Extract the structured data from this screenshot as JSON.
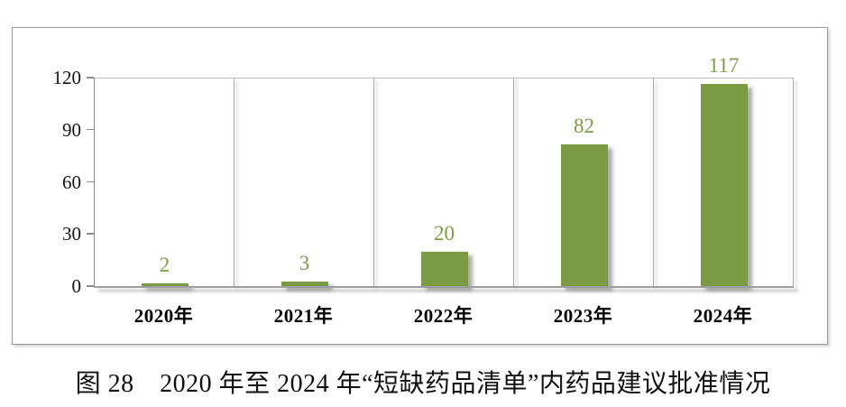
{
  "figure": {
    "caption": "图 28　2020 年至 2024 年“短缺药品清单”内药品建议批准情况"
  },
  "chart_data": {
    "type": "bar",
    "title": "",
    "xlabel": "",
    "ylabel": "",
    "categories": [
      "2020年",
      "2021年",
      "2022年",
      "2023年",
      "2024年"
    ],
    "values": [
      2,
      3,
      20,
      82,
      117
    ],
    "ylim": [
      0,
      120
    ],
    "yticks": [
      0,
      30,
      60,
      90,
      120
    ],
    "legend_position": "none",
    "grid": "vertical-category-separators",
    "colors": {
      "bar_fill": "#7a9b44",
      "value_label": "#7d9c45",
      "axis_line": "#8c8c8c",
      "gridline": "#a8a8a8",
      "tick_label": "#141414",
      "box_border": "#9a9a9a"
    }
  }
}
